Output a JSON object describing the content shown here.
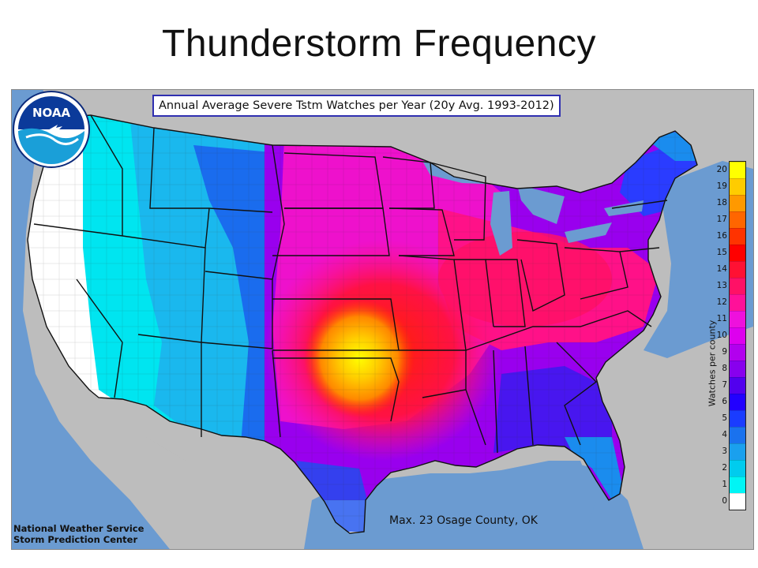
{
  "page": {
    "title": "Thunderstorm Frequency"
  },
  "map": {
    "heading": "Annual Average Severe Tstm Watches per Year (20y Avg. 1993-2012)",
    "max_note": "Max. 23 Osage County, OK",
    "region": "Contiguous United States (by county)",
    "colors": {
      "ocean": "#6b9bd1",
      "land_outside": "#bdbdbd",
      "lakes": "#6b9bd1",
      "state_border": "#111111"
    }
  },
  "legend": {
    "title": "Watches per county",
    "ticks": [
      "0",
      "1",
      "2",
      "3",
      "4",
      "5",
      "6",
      "7",
      "8",
      "9",
      "10",
      "11",
      "12",
      "13",
      "14",
      "15",
      "16",
      "17",
      "18",
      "19",
      "20"
    ],
    "colors": [
      "#ffffff",
      "#00f5f5",
      "#00ccee",
      "#1aa0ee",
      "#1a72ee",
      "#1a3cff",
      "#2200ff",
      "#5200ee",
      "#8800ee",
      "#b200ee",
      "#dd00ee",
      "#ee11dd",
      "#ff1199",
      "#ff1166",
      "#ff1133",
      "#ff0000",
      "#ff3300",
      "#ff6600",
      "#ff9900",
      "#ffcc00",
      "#ffff00"
    ]
  },
  "agency": {
    "logo_text": "NOAA",
    "line1": "National Weather Service",
    "line2": "Storm Prediction Center"
  }
}
